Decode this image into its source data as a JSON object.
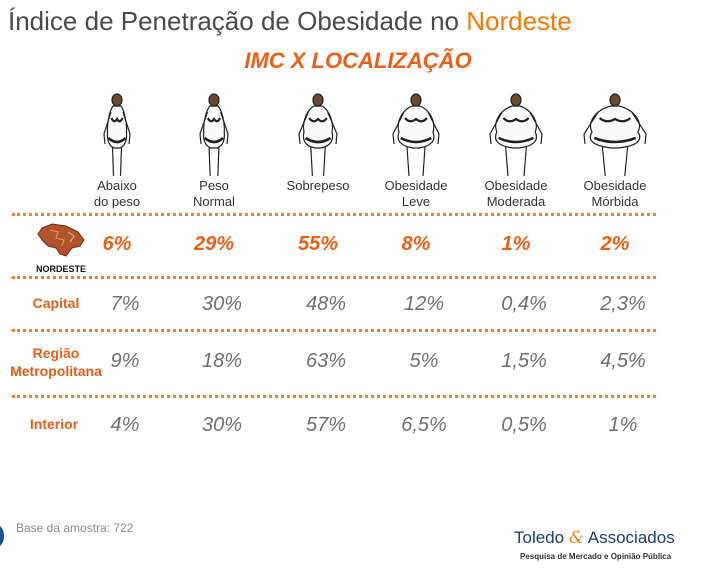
{
  "title": {
    "main": "Índice de Penetração de Obesidade no ",
    "highlight": "Nordeste"
  },
  "subtitle": "IMC X LOCALIZAÇÃO",
  "chart_data": {
    "type": "table",
    "categories": [
      {
        "line1": "Abaixo",
        "line2": "do peso"
      },
      {
        "line1": "Peso",
        "line2": "Normal"
      },
      {
        "line1": "Sobrepeso",
        "line2": ""
      },
      {
        "line1": "Obesidade",
        "line2": "Leve"
      },
      {
        "line1": "Obesidade",
        "line2": "Moderada"
      },
      {
        "line1": "Obesidade",
        "line2": "Mórbida"
      }
    ],
    "rows": [
      {
        "label_line1": "NORDESTE",
        "label_line2": "",
        "values": [
          "6%",
          "29%",
          "55%",
          "8%",
          "1%",
          "2%"
        ]
      },
      {
        "label_line1": "Capital",
        "label_line2": "",
        "values": [
          "7%",
          "30%",
          "48%",
          "12%",
          "0,4%",
          "2,3%"
        ]
      },
      {
        "label_line1": "Região",
        "label_line2": "Metropolitana",
        "values": [
          "9%",
          "18%",
          "63%",
          "5%",
          "1,5%",
          "4,5%"
        ]
      },
      {
        "label_line1": "Interior",
        "label_line2": "",
        "values": [
          "4%",
          "30%",
          "57%",
          "6,5%",
          "0,5%",
          "1%"
        ]
      }
    ]
  },
  "footer": {
    "base": "Base da amostra: 722"
  },
  "brand": {
    "name_part1": "Toledo ",
    "ampersand": "&",
    "name_part2": " Associados",
    "tagline": "Pesquisa de Mercado e Opinião Pública"
  },
  "icons": {
    "figures": "body-silhouette-icon",
    "region": "nordeste-map-icon"
  },
  "colors": {
    "accent": "#e8601a",
    "title": "#4a4a4a",
    "values": "#707070",
    "brand": "#1f3c6e"
  }
}
